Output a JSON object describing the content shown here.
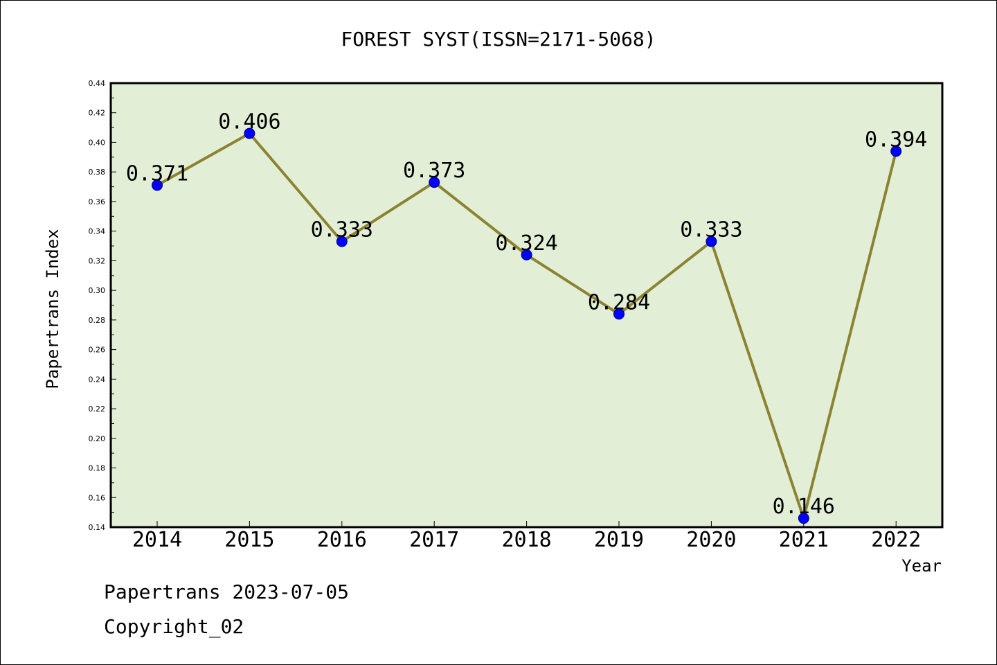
{
  "chart_data": {
    "type": "line",
    "title": "FOREST SYST(ISSN=2171-5068)",
    "xlabel": "Year",
    "ylabel": "Papertrans Index",
    "categories": [
      "2014",
      "2015",
      "2016",
      "2017",
      "2018",
      "2019",
      "2020",
      "2021",
      "2022"
    ],
    "series": [
      {
        "values": [
          0.371,
          0.406,
          0.333,
          0.373,
          0.324,
          0.284,
          0.333,
          0.146,
          0.394
        ],
        "data_labels": [
          "0.371",
          "0.406",
          "0.333",
          "0.373",
          "0.324",
          "0.284",
          "0.333",
          "0.146",
          "0.394"
        ]
      }
    ],
    "ylim": [
      0.14,
      0.44
    ],
    "yticks": [
      "0.14",
      "0.16",
      "0.18",
      "0.20",
      "0.22",
      "0.24",
      "0.26",
      "0.28",
      "0.30",
      "0.32",
      "0.34",
      "0.36",
      "0.38",
      "0.40",
      "0.42",
      "0.44"
    ],
    "grid": false,
    "colors": {
      "plot_background": "#e2efd6",
      "line": "#8b8232",
      "marker": "#0000ff"
    }
  },
  "footer": {
    "date_line": "Papertrans 2023-07-05",
    "copyright": "Copyright_02"
  }
}
